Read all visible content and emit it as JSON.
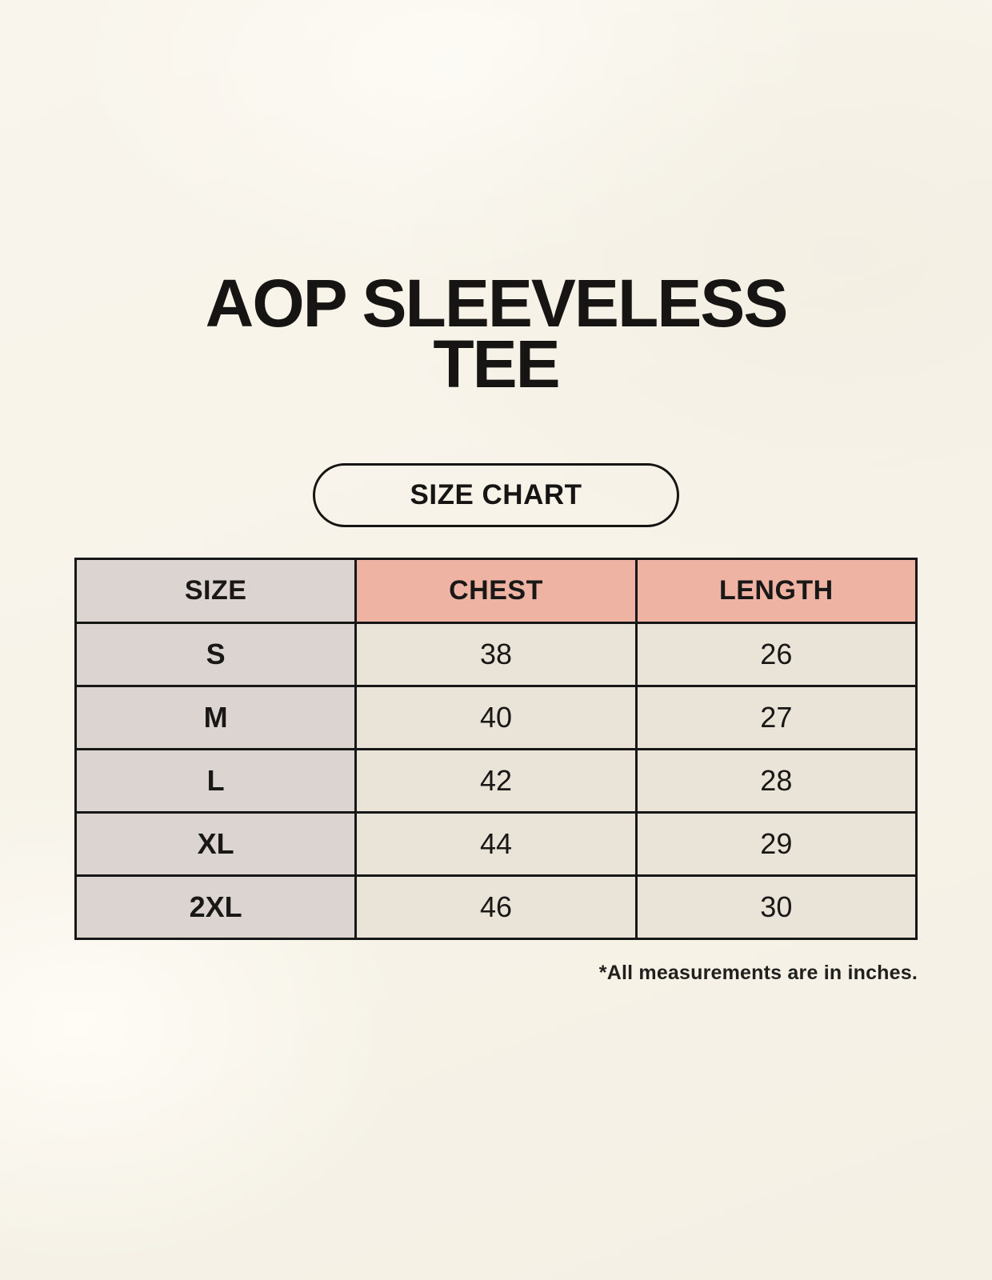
{
  "page": {
    "title": "AOP SLEEVELESS TEE",
    "badge_label": "SIZE CHART",
    "footnote": "*All measurements are in inches."
  },
  "table": {
    "columns": [
      "SIZE",
      "CHEST",
      "LENGTH"
    ],
    "rows": [
      {
        "size": "S",
        "chest": "38",
        "length": "26"
      },
      {
        "size": "M",
        "chest": "40",
        "length": "27"
      },
      {
        "size": "L",
        "chest": "42",
        "length": "28"
      },
      {
        "size": "XL",
        "chest": "44",
        "length": "29"
      },
      {
        "size": "2XL",
        "chest": "46",
        "length": "30"
      }
    ]
  },
  "chart_data": {
    "type": "table",
    "title": "AOP SLEEVELESS TEE",
    "columns": [
      "SIZE",
      "CHEST",
      "LENGTH"
    ],
    "rows": [
      [
        "S",
        38,
        26
      ],
      [
        "M",
        40,
        27
      ],
      [
        "L",
        42,
        28
      ],
      [
        "XL",
        44,
        29
      ],
      [
        "2XL",
        46,
        30
      ]
    ],
    "note": "*All measurements are in inches."
  },
  "colors": {
    "background": "#f7f3e9",
    "size_column_gray": "#dbd4d1",
    "header_salmon": "#eeb3a2",
    "value_cell_cream": "#e9e4d7",
    "border_black": "#171717",
    "text": "#1a1817"
  }
}
